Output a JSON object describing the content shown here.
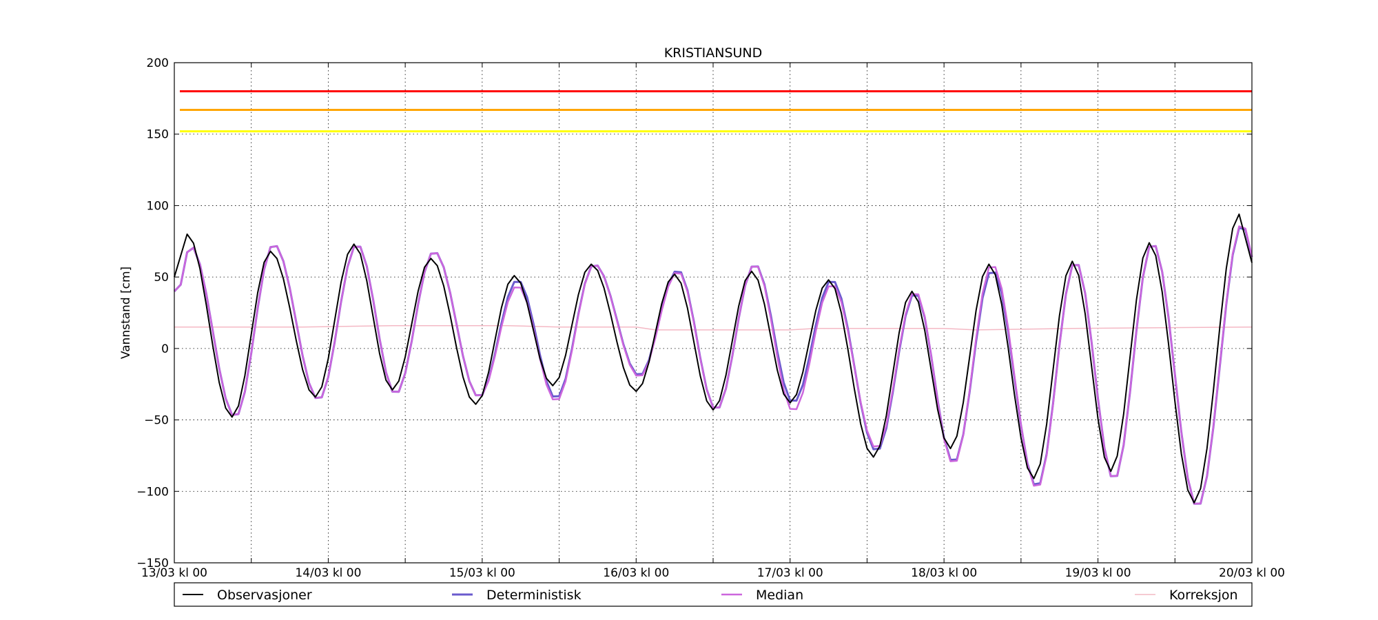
{
  "chart_data": {
    "type": "line",
    "title": "KRISTIANSUND",
    "xlabel": "",
    "ylabel": "Vannstand [cm]",
    "ylim": [
      -150,
      200
    ],
    "xlim_hours": [
      0,
      168
    ],
    "yticks": [
      200,
      150,
      100,
      50,
      0,
      -50,
      -100,
      -150
    ],
    "ytick_labels": [
      "200",
      "150",
      "100",
      "50",
      "0",
      "−50",
      "−100",
      "−150"
    ],
    "xticks": [
      {
        "hour": 0,
        "label": "13/03 kl 00"
      },
      {
        "hour": 24,
        "label": "14/03 kl 00"
      },
      {
        "hour": 48,
        "label": "15/03 kl 00"
      },
      {
        "hour": 72,
        "label": "16/03 kl 00"
      },
      {
        "hour": 96,
        "label": "17/03 kl 00"
      },
      {
        "hour": 120,
        "label": "18/03 kl 00"
      },
      {
        "hour": 144,
        "label": "19/03 kl 00"
      },
      {
        "hour": 168,
        "label": "20/03 kl 00"
      }
    ],
    "minor_grid_hours": [
      12,
      36,
      60,
      84,
      108,
      132,
      156
    ],
    "grid": true,
    "legend_position": "bottom",
    "thresholds": [
      {
        "value": 180,
        "color": "#ff0000"
      },
      {
        "value": 167,
        "color": "#ffa500"
      },
      {
        "value": 152,
        "color": "#ffff00"
      }
    ],
    "extrema": [
      {
        "t": 0.0,
        "v": 50
      },
      {
        "t": 2.0,
        "v": 80
      },
      {
        "t": 9.0,
        "v": -48
      },
      {
        "t": 15.0,
        "v": 68
      },
      {
        "t": 22.0,
        "v": -34
      },
      {
        "t": 28.0,
        "v": 73
      },
      {
        "t": 34.0,
        "v": -29
      },
      {
        "t": 40.0,
        "v": 63
      },
      {
        "t": 47.0,
        "v": -39
      },
      {
        "t": 53.0,
        "v": 51
      },
      {
        "t": 59.0,
        "v": -26
      },
      {
        "t": 65.0,
        "v": 59
      },
      {
        "t": 72.0,
        "v": -30
      },
      {
        "t": 78.0,
        "v": 52
      },
      {
        "t": 84.0,
        "v": -43
      },
      {
        "t": 90.0,
        "v": 54
      },
      {
        "t": 96.0,
        "v": -38
      },
      {
        "t": 102.0,
        "v": 48
      },
      {
        "t": 109.0,
        "v": -76
      },
      {
        "t": 115.0,
        "v": 40
      },
      {
        "t": 121.0,
        "v": -70
      },
      {
        "t": 127.0,
        "v": 59
      },
      {
        "t": 134.0,
        "v": -91
      },
      {
        "t": 140.0,
        "v": 61
      },
      {
        "t": 146.0,
        "v": -86
      },
      {
        "t": 152.0,
        "v": 74
      },
      {
        "t": 159.0,
        "v": -108
      },
      {
        "t": 166.0,
        "v": 94
      },
      {
        "t": 168.0,
        "v": 60
      }
    ],
    "series": [
      {
        "name": "Observasjoner",
        "color": "#000000",
        "width": 2.0,
        "offsets": [],
        "phase": 0
      },
      {
        "name": "Deterministisk",
        "color": "#6a5acd",
        "width": 3.0,
        "offsets": [
          -10,
          -8,
          0,
          5,
          -2,
          0,
          -3,
          5,
          5,
          -3,
          -9,
          0,
          11,
          3,
          0,
          5,
          0,
          0,
          4,
          -1,
          -10,
          -4,
          -6,
          0,
          -6,
          0,
          -3,
          -7,
          0
        ],
        "phase": 0.5
      },
      {
        "name": "Median",
        "color": "#cc66dd",
        "width": 2.5,
        "offsets": [
          -10,
          -8,
          0,
          5,
          -2,
          0,
          -3,
          5,
          5,
          -7,
          -11,
          0,
          10,
          2,
          0,
          5,
          -6,
          -3,
          6,
          0,
          -11,
          0,
          -7,
          0,
          -6,
          0,
          -3,
          -6,
          0
        ],
        "phase": 0.5
      },
      {
        "name": "Korreksjon",
        "color": "#f4b8c4",
        "width": 1.5,
        "points": [
          [
            0,
            15
          ],
          [
            20,
            15
          ],
          [
            34,
            16
          ],
          [
            52,
            16
          ],
          [
            60,
            15
          ],
          [
            72,
            15
          ],
          [
            75,
            13
          ],
          [
            96,
            13
          ],
          [
            100,
            14
          ],
          [
            120,
            14
          ],
          [
            125,
            13
          ],
          [
            140,
            14
          ],
          [
            168,
            15
          ]
        ]
      }
    ]
  }
}
